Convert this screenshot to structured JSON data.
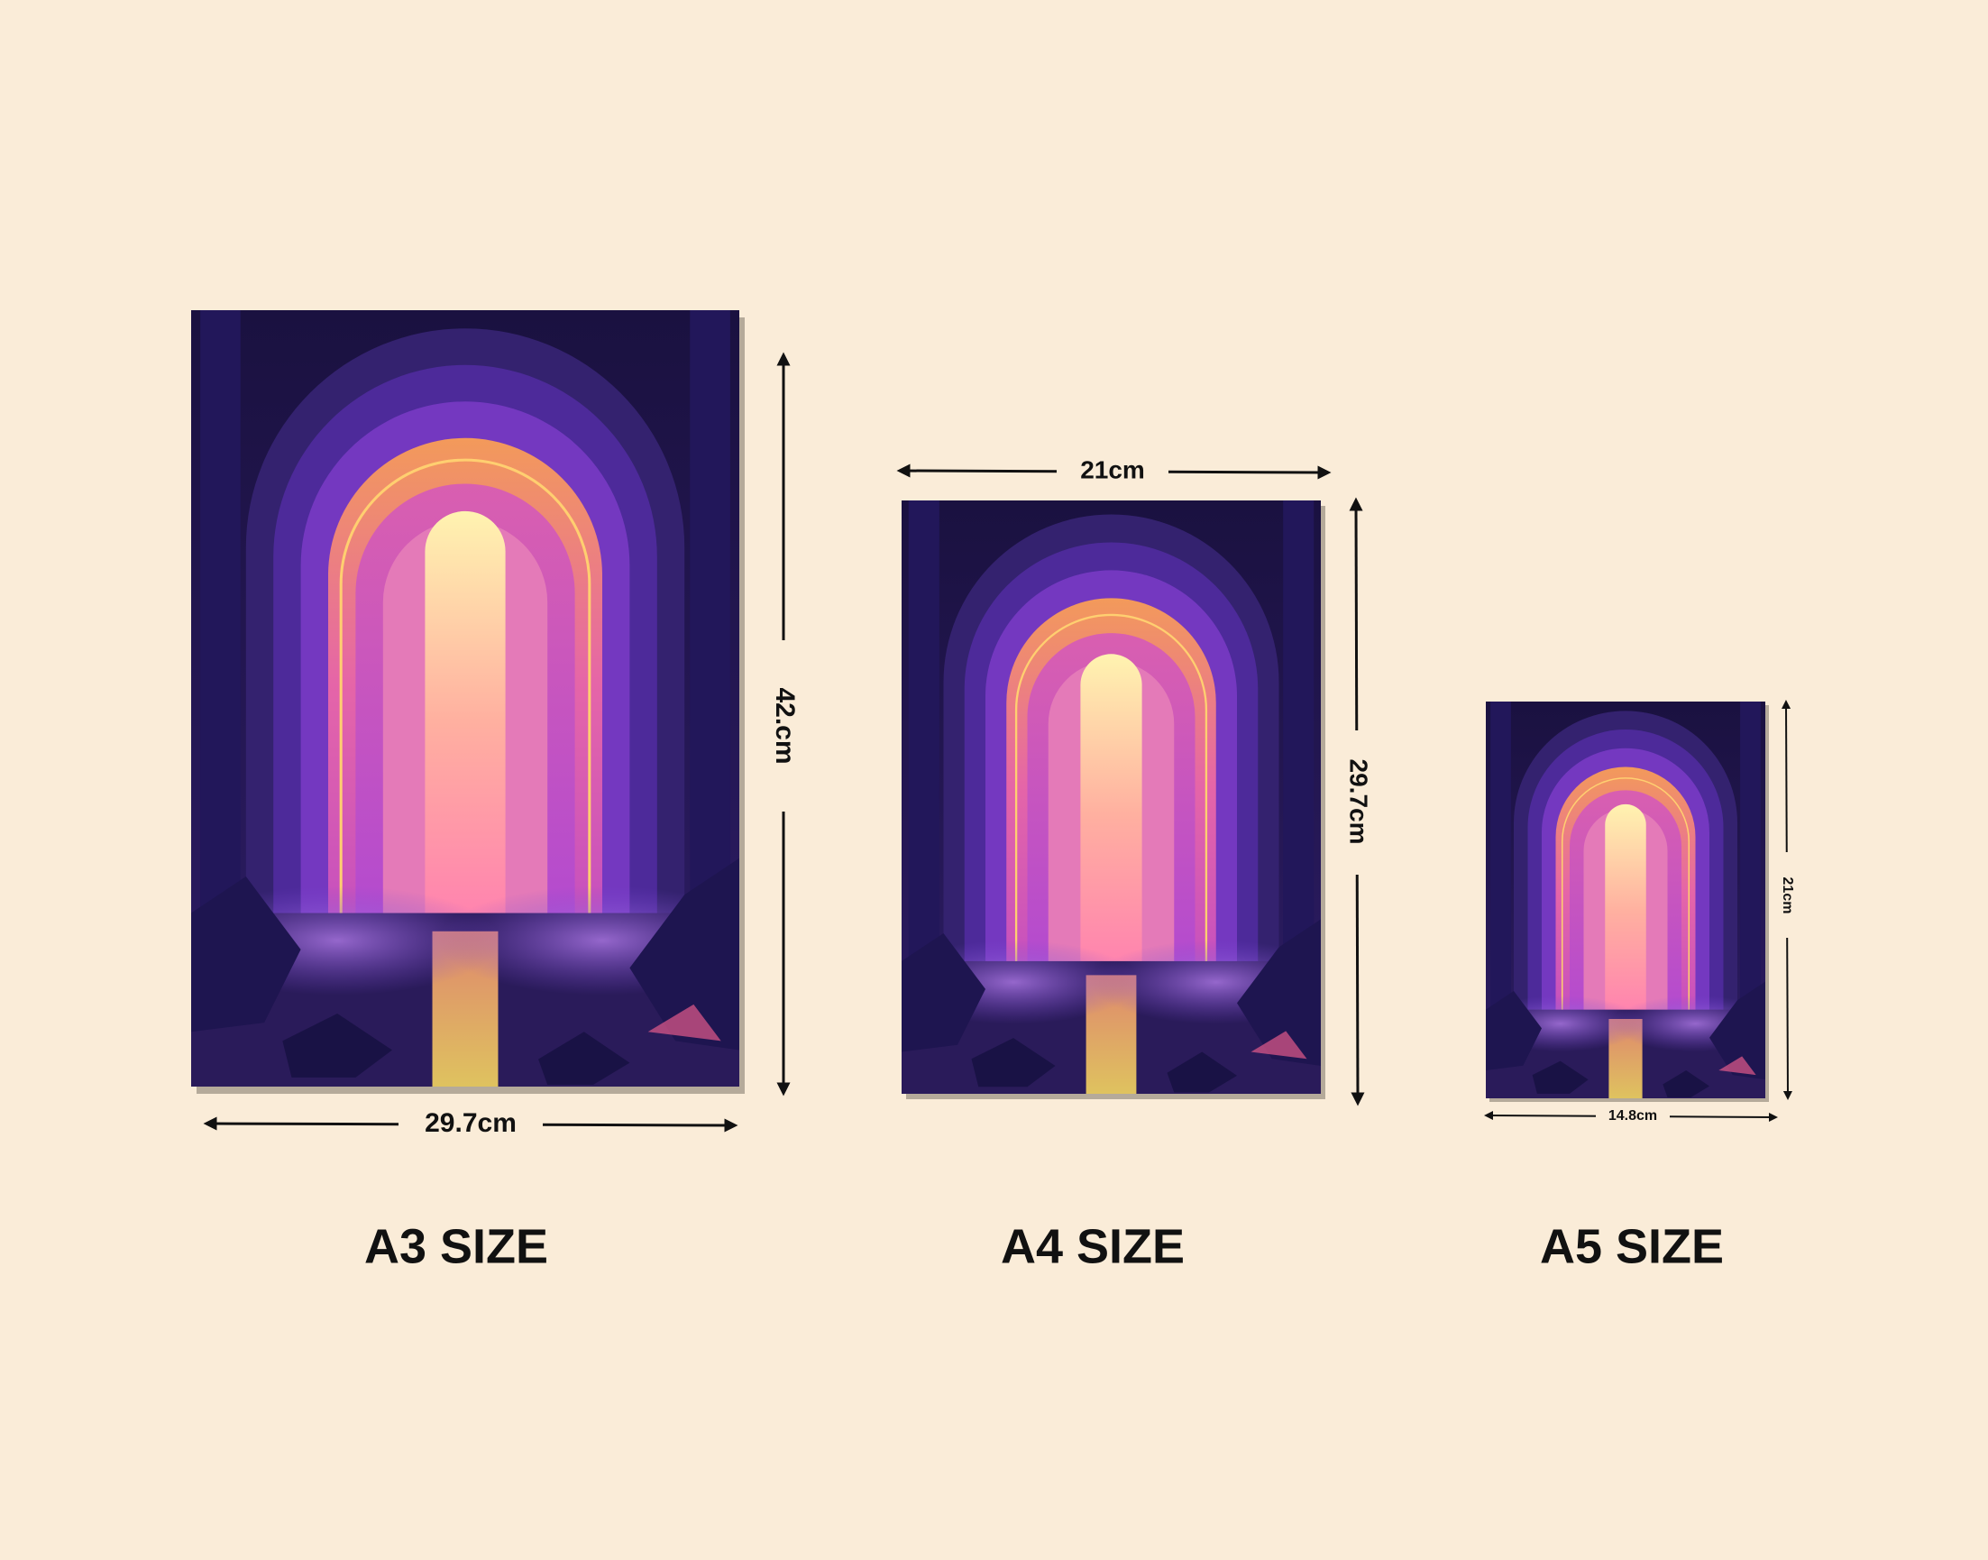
{
  "posters": [
    {
      "label": "A3 SIZE",
      "width": "29.7cm",
      "height": "42.cm"
    },
    {
      "label": "A4 SIZE",
      "width": "21cm",
      "height": "29.7cm"
    },
    {
      "label": "A5 SIZE",
      "width": "14.8cm",
      "height": "21cm"
    }
  ]
}
